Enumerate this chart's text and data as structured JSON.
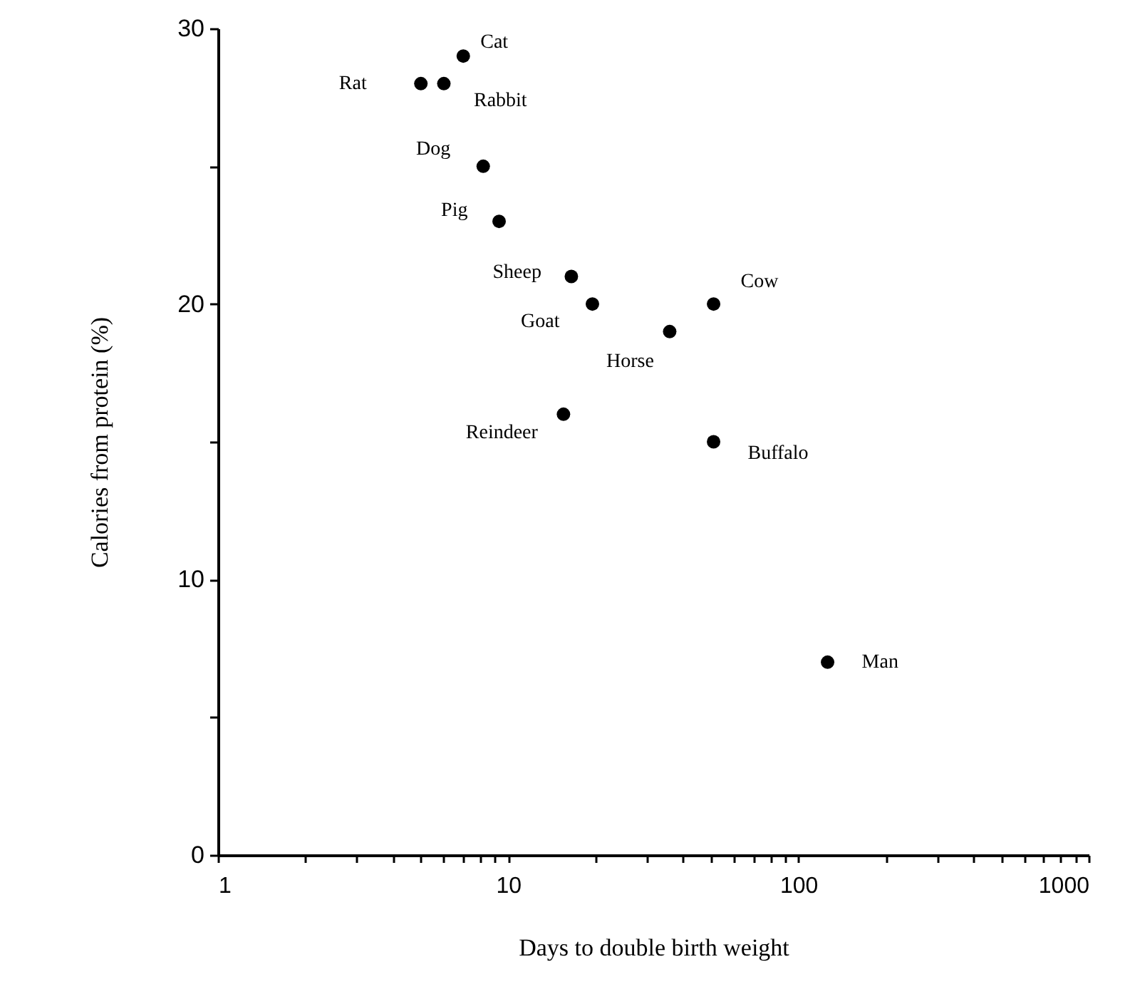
{
  "chart_data": {
    "type": "scatter",
    "xlabel": "Days to double birth weight",
    "ylabel": "Calories from protein (%)",
    "x": [
      5,
      6,
      7,
      8.2,
      9.3,
      16.5,
      19.5,
      36,
      51,
      15.5,
      51,
      126
    ],
    "values": [
      28,
      28,
      29,
      25,
      23,
      21,
      20,
      19,
      20,
      16,
      15,
      7
    ],
    "color": "#000000",
    "marker": "circle",
    "log": "x",
    "grid": false,
    "xlim": [
      1,
      1000
    ],
    "xticks": [
      1,
      {
        "value": 2,
        "label": null
      },
      {
        "value": 3,
        "label": null
      },
      {
        "value": 4,
        "label": null
      },
      {
        "value": 5,
        "label": null
      },
      {
        "value": 6,
        "label": null
      },
      {
        "value": 7,
        "label": null
      },
      {
        "value": 8,
        "label": null
      },
      {
        "value": 9,
        "label": null
      },
      10,
      {
        "value": 20,
        "label": null
      },
      {
        "value": 30,
        "label": null
      },
      {
        "value": 40,
        "label": null
      },
      {
        "value": 50,
        "label": null
      },
      {
        "value": 60,
        "label": null
      },
      {
        "value": 70,
        "label": null
      },
      {
        "value": 80,
        "label": null
      },
      {
        "value": 90,
        "label": null
      },
      100,
      {
        "value": 200,
        "label": null
      },
      {
        "value": 300,
        "label": null
      },
      {
        "value": 400,
        "label": null
      },
      {
        "value": 500,
        "label": null
      },
      {
        "value": 600,
        "label": null
      },
      {
        "value": 700,
        "label": null
      },
      {
        "value": 800,
        "label": null
      },
      {
        "value": 900,
        "label": null
      },
      1000
    ],
    "ylim": [
      0,
      30
    ],
    "yticks": [
      0,
      {
        "value": 5,
        "label": null
      },
      10,
      {
        "value": 15,
        "label": null
      },
      20,
      {
        "value": 25,
        "label": null
      },
      30
    ],
    "annotations": [
      {
        "text": "Rat",
        "x": 5,
        "y": 28
      },
      {
        "text": "Rabbit",
        "x": 6,
        "y": 28
      },
      {
        "text": "Cat",
        "x": 7,
        "y": 29
      },
      {
        "text": "Dog",
        "x": 8.2,
        "y": 25
      },
      {
        "text": "Pig",
        "x": 9.3,
        "y": 23
      },
      {
        "text": "Sheep",
        "x": 16.5,
        "y": 21
      },
      {
        "text": "Goat",
        "x": 19.5,
        "y": 20
      },
      {
        "text": "Horse",
        "x": 36,
        "y": 19
      },
      {
        "text": "Cow",
        "x": 51,
        "y": 20
      },
      {
        "text": "Reindeer",
        "x": 15.5,
        "y": 16
      },
      {
        "text": "Buffalo",
        "x": 51,
        "y": 15
      },
      {
        "text": "Man",
        "x": 126,
        "y": 7
      }
    ]
  }
}
